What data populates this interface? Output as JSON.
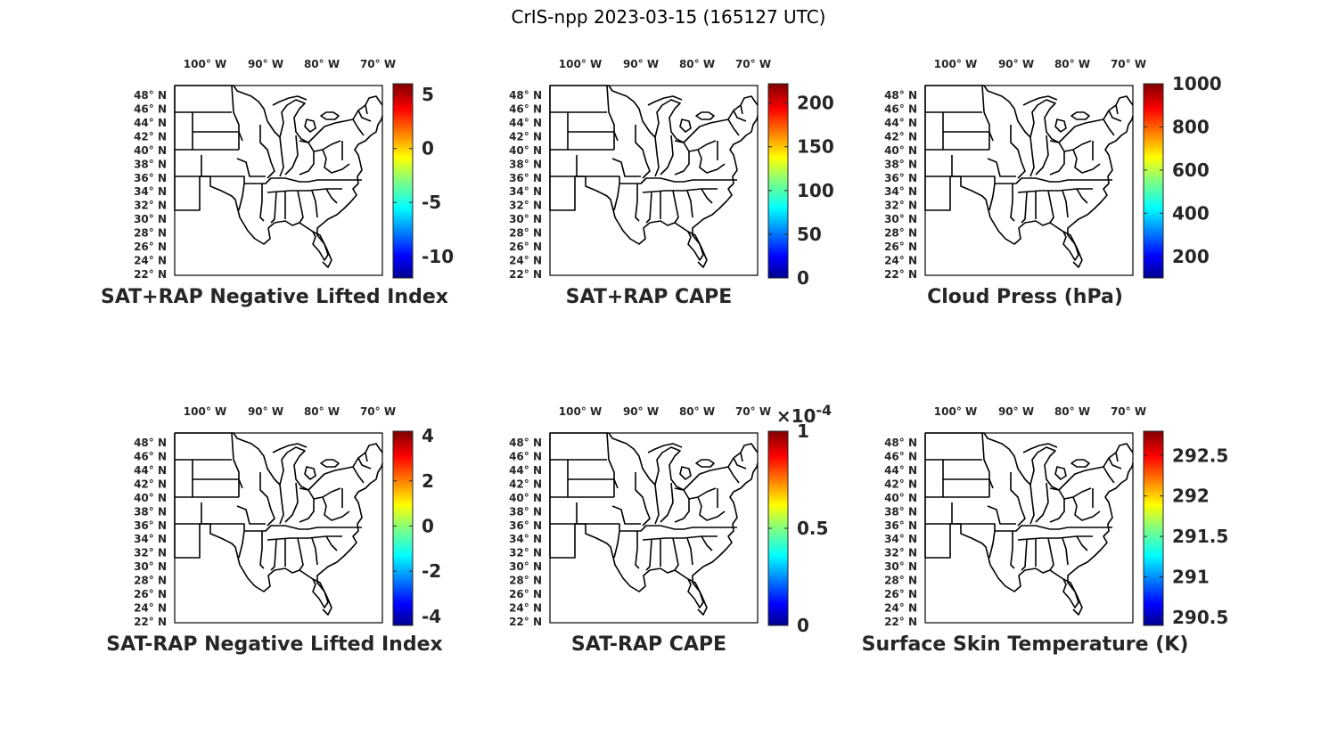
{
  "figure": {
    "title": "CrIS-npp 2023-03-15 (165127 UTC)",
    "lon_ticks": [
      "100",
      "90",
      "80",
      "70"
    ],
    "lon_hemi": "W",
    "lat_ticks": [
      "48",
      "46",
      "44",
      "42",
      "40",
      "38",
      "36",
      "34",
      "32",
      "30",
      "28",
      "26",
      "24",
      "22"
    ],
    "lat_hemi": "N",
    "deg_symbol": "°",
    "colormap": "jet",
    "map_color": "#000000"
  },
  "panels": [
    {
      "title": "SAT+RAP Negative Lifted Index",
      "colorbar": {
        "ticks": [
          "5",
          "0",
          "-5",
          "-10"
        ],
        "values": [
          5,
          0,
          -5,
          -10
        ],
        "range": [
          -12,
          6
        ],
        "multiplier": ""
      }
    },
    {
      "title": "SAT+RAP CAPE",
      "colorbar": {
        "ticks": [
          "200",
          "150",
          "100",
          "50",
          "0"
        ],
        "values": [
          200,
          150,
          100,
          50,
          0
        ],
        "range": [
          0,
          222
        ],
        "multiplier": ""
      }
    },
    {
      "title": "Cloud Press (hPa)",
      "colorbar": {
        "ticks": [
          "1000",
          "800",
          "600",
          "400",
          "200"
        ],
        "values": [
          1000,
          800,
          600,
          400,
          200
        ],
        "range": [
          100,
          1000
        ],
        "multiplier": ""
      }
    },
    {
      "title": "SAT-RAP Negative Lifted Index",
      "colorbar": {
        "ticks": [
          "4",
          "2",
          "0",
          "-2",
          "-4"
        ],
        "values": [
          4,
          2,
          0,
          -2,
          -4
        ],
        "range": [
          -4.4,
          4.2
        ],
        "multiplier": ""
      }
    },
    {
      "title": "SAT-RAP CAPE",
      "colorbar": {
        "ticks": [
          "1",
          "0.5",
          "0"
        ],
        "values": [
          1,
          0.5,
          0
        ],
        "range": [
          0,
          1
        ],
        "multiplier": "×10",
        "exponent": "-4"
      }
    },
    {
      "title": "Surface Skin Temperature (K)",
      "colorbar": {
        "ticks": [
          "292.5",
          "292",
          "291.5",
          "291",
          "290.5"
        ],
        "values": [
          292.5,
          292,
          291.5,
          291,
          290.5
        ],
        "range": [
          290.4,
          292.8
        ],
        "multiplier": ""
      }
    }
  ]
}
